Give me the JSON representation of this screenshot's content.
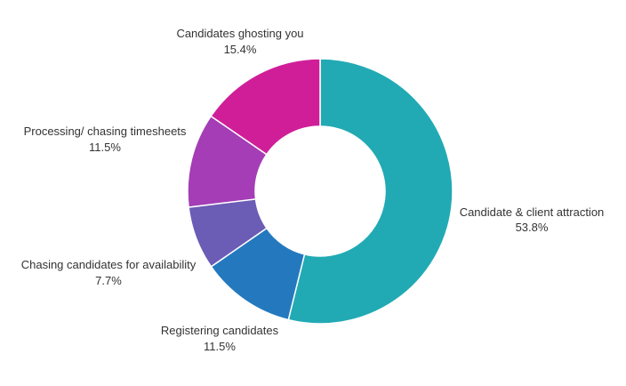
{
  "chart_data": {
    "type": "pie",
    "variant": "donut",
    "title": "",
    "slices": [
      {
        "label": "Candidate & client attraction",
        "value": 53.8,
        "percent_label": "53.8%",
        "color": "#21AAB4"
      },
      {
        "label": "Registering candidates",
        "value": 11.5,
        "percent_label": "11.5%",
        "color": "#2479BE"
      },
      {
        "label": "Chasing candidates for availability",
        "value": 7.7,
        "percent_label": "7.7%",
        "color": "#6B5CB5"
      },
      {
        "label": "Processing/ chasing timesheets",
        "value": 11.5,
        "percent_label": "11.5%",
        "color": "#A43DB6"
      },
      {
        "label": "Candidates ghosting you",
        "value": 15.4,
        "percent_label": "15.4%",
        "color": "#D01E99"
      }
    ],
    "start": "12 o'clock",
    "direction": "clockwise",
    "legend": "none (labels outside slices)"
  }
}
